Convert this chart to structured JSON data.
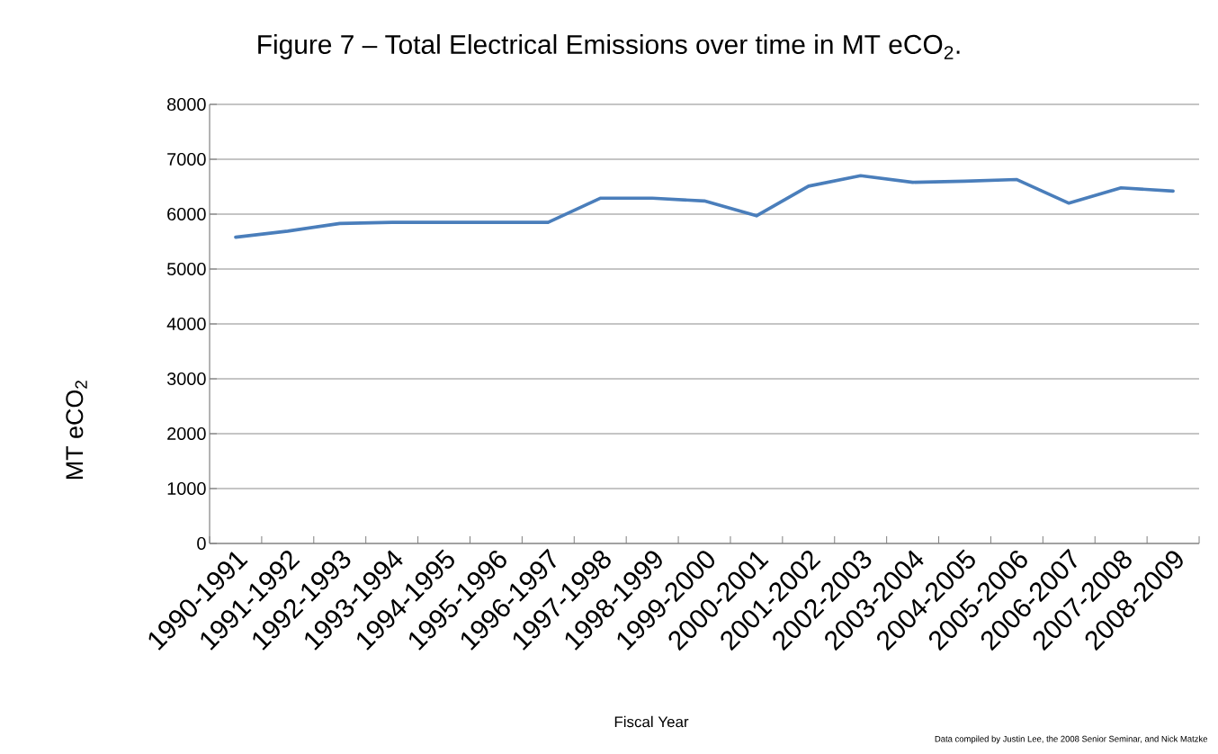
{
  "chart_data": {
    "type": "line",
    "title": "Figure 7 – Total Electrical Emissions over time in MT eCO$_{2}$.",
    "xlabel": "Fiscal Year",
    "ylabel": "MT eCO$_{2}$",
    "annotations": [
      "Data compiled by Justin Lee, the 2008 Senior Seminar, and Nick Matzke"
    ],
    "categories": [
      "1990-1991",
      "1991-1992",
      "1992-1993",
      "1993-1994",
      "1994-1995",
      "1995-1996",
      "1996-1997",
      "1997-1998",
      "1998-1999",
      "1999-2000",
      "2000-2001",
      "2001-2002",
      "2002-2003",
      "2003-2004",
      "2004-2005",
      "2005-2006",
      "2006-2007",
      "2007-2008",
      "2008-2009"
    ],
    "series": [
      {
        "color": "#4a7ebb",
        "values": [
          5580,
          5690,
          5830,
          5850,
          5850,
          5850,
          5850,
          6290,
          6290,
          6240,
          5970,
          6510,
          6700,
          6580,
          6600,
          6630,
          6200,
          6480,
          6420
        ]
      }
    ],
    "ylim": [
      0,
      8000
    ],
    "yticks": [
      0,
      1000,
      2000,
      3000,
      4000,
      5000,
      6000,
      7000,
      8000
    ],
    "grid": "y",
    "marker": "none",
    "line_style": "solid"
  }
}
